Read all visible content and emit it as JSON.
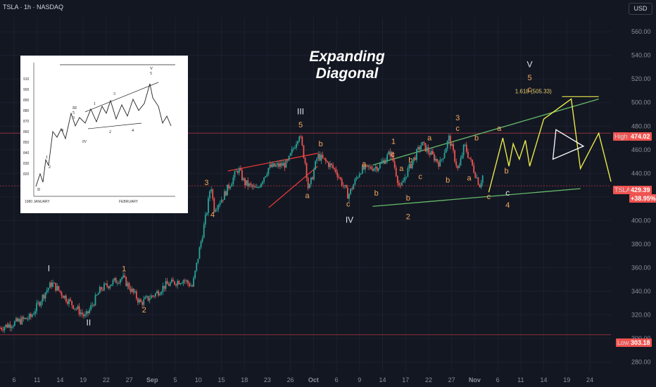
{
  "header": {
    "ticker_line": "TSLA · 1h · NASDAQ",
    "currency_button": "USD"
  },
  "annotation": {
    "headline": "Expanding Diagonal",
    "fib_target": "1.618 (505.33)"
  },
  "price_tags": {
    "high": {
      "name": "High",
      "value": "474.02"
    },
    "last": {
      "name": "TSLA",
      "value": "429.39",
      "change": "+38.95%"
    },
    "low": {
      "name": "Low",
      "value": "303.18"
    }
  },
  "colors": {
    "background": "#131722",
    "up": "#26a69a",
    "down": "#ef5350",
    "wave_label": "#f6a85c",
    "channel": "#66bb6a",
    "projection": "#e8e84a",
    "wedge": "#e53935"
  },
  "chart_data": {
    "type": "candlestick",
    "y_axis": {
      "ticks": [
        560,
        540,
        520,
        500,
        480,
        460,
        440,
        420,
        400,
        380,
        360,
        340,
        320,
        300,
        280
      ],
      "ylim": [
        272,
        572
      ],
      "position": "right"
    },
    "x_axis": {
      "ticks": [
        "6",
        "11",
        "14",
        "19",
        "22",
        "27",
        "Sep",
        "5",
        "10",
        "15",
        "18",
        "23",
        "26",
        "Oct",
        "6",
        "9",
        "14",
        "17",
        "22",
        "27",
        "Nov",
        "6",
        "11",
        "14",
        "19",
        "24"
      ]
    },
    "price_path": [
      [
        0,
        309
      ],
      [
        0.05,
        318
      ],
      [
        0.075,
        340
      ],
      [
        0.085,
        347
      ],
      [
        0.11,
        333
      ],
      [
        0.14,
        318
      ],
      [
        0.165,
        342
      ],
      [
        0.2,
        352
      ],
      [
        0.23,
        330
      ],
      [
        0.255,
        338
      ],
      [
        0.27,
        345
      ],
      [
        0.3,
        350
      ],
      [
        0.315,
        344
      ],
      [
        0.33,
        385
      ],
      [
        0.34,
        412
      ],
      [
        0.345,
        432
      ],
      [
        0.35,
        410
      ],
      [
        0.365,
        420
      ],
      [
        0.39,
        444
      ],
      [
        0.4,
        432
      ],
      [
        0.42,
        426
      ],
      [
        0.44,
        445
      ],
      [
        0.47,
        448
      ],
      [
        0.49,
        474
      ],
      [
        0.5,
        448
      ],
      [
        0.505,
        425
      ],
      [
        0.52,
        455
      ],
      [
        0.54,
        447
      ],
      [
        0.55,
        442
      ],
      [
        0.57,
        421
      ],
      [
        0.59,
        443
      ],
      [
        0.62,
        446
      ],
      [
        0.64,
        458
      ],
      [
        0.655,
        426
      ],
      [
        0.665,
        440
      ],
      [
        0.69,
        465
      ],
      [
        0.72,
        448
      ],
      [
        0.735,
        470
      ],
      [
        0.75,
        442
      ],
      [
        0.76,
        464
      ],
      [
        0.785,
        430
      ],
      [
        0.79,
        438
      ]
    ],
    "horizontal_lines": [
      {
        "label": "High",
        "value": 474.02
      },
      {
        "label": "TSLA",
        "value": 429.39
      },
      {
        "label": "Low",
        "value": 303.18
      }
    ],
    "wave_labels": [
      {
        "text": "I",
        "x": 0.08,
        "y": 357,
        "color": "white"
      },
      {
        "text": "II",
        "x": 0.145,
        "y": 311,
        "color": "white"
      },
      {
        "text": "1",
        "x": 0.203,
        "y": 357,
        "color": "orange"
      },
      {
        "text": "2",
        "x": 0.236,
        "y": 322,
        "color": "orange"
      },
      {
        "text": "3",
        "x": 0.338,
        "y": 430,
        "color": "orange"
      },
      {
        "text": "4",
        "x": 0.348,
        "y": 403,
        "color": "orange"
      },
      {
        "text": "III",
        "x": 0.492,
        "y": 490,
        "color": "white"
      },
      {
        "text": "5",
        "x": 0.492,
        "y": 479,
        "color": "orange"
      },
      {
        "text": "b",
        "x": 0.525,
        "y": 463,
        "color": "orange"
      },
      {
        "text": "a",
        "x": 0.503,
        "y": 419,
        "color": "orange"
      },
      {
        "text": "c",
        "x": 0.57,
        "y": 412,
        "color": "orange"
      },
      {
        "text": "IV",
        "x": 0.572,
        "y": 398,
        "color": "white"
      },
      {
        "text": "a",
        "x": 0.596,
        "y": 446,
        "color": "orange"
      },
      {
        "text": "b",
        "x": 0.616,
        "y": 421,
        "color": "orange"
      },
      {
        "text": "1",
        "x": 0.644,
        "y": 465,
        "color": "orange"
      },
      {
        "text": "c",
        "x": 0.643,
        "y": 454,
        "color": "orange"
      },
      {
        "text": "a",
        "x": 0.657,
        "y": 442,
        "color": "orange"
      },
      {
        "text": "b",
        "x": 0.672,
        "y": 449,
        "color": "orange"
      },
      {
        "text": "c",
        "x": 0.688,
        "y": 435,
        "color": "orange"
      },
      {
        "text": "2",
        "x": 0.668,
        "y": 401,
        "color": "orange"
      },
      {
        "text": "b",
        "x": 0.668,
        "y": 417,
        "color": "orange"
      },
      {
        "text": "a",
        "x": 0.703,
        "y": 468,
        "color": "orange"
      },
      {
        "text": "3",
        "x": 0.749,
        "y": 485,
        "color": "orange"
      },
      {
        "text": "c",
        "x": 0.749,
        "y": 476,
        "color": "orange"
      },
      {
        "text": "b",
        "x": 0.733,
        "y": 432,
        "color": "orange"
      },
      {
        "text": "b",
        "x": 0.78,
        "y": 468,
        "color": "orange"
      },
      {
        "text": "a",
        "x": 0.768,
        "y": 434,
        "color": "orange"
      },
      {
        "text": "c",
        "x": 0.8,
        "y": 418,
        "color": "orange"
      },
      {
        "text": "4",
        "x": 0.831,
        "y": 411,
        "color": "orange"
      },
      {
        "text": "c",
        "x": 0.831,
        "y": 421,
        "color": "white"
      },
      {
        "text": "a",
        "x": 0.817,
        "y": 476,
        "color": "orange"
      },
      {
        "text": "b",
        "x": 0.829,
        "y": 440,
        "color": "orange"
      },
      {
        "text": "V",
        "x": 0.867,
        "y": 530,
        "color": "white"
      },
      {
        "text": "5",
        "x": 0.867,
        "y": 519,
        "color": "orange"
      },
      {
        "text": "c",
        "x": 0.867,
        "y": 509,
        "color": "orange"
      }
    ]
  },
  "inset": {
    "y_ticks": [
      "910",
      "900",
      "890",
      "880",
      "870",
      "860",
      "850",
      "840",
      "830",
      "820"
    ],
    "x_labels": [
      "1980 JANUARY",
      "FEBRUARY"
    ],
    "wave_labels": [
      "V",
      "5",
      "3",
      "1",
      "III",
      "5",
      "3",
      "4",
      "2",
      "4",
      "1",
      "2",
      "IV",
      "II"
    ]
  }
}
